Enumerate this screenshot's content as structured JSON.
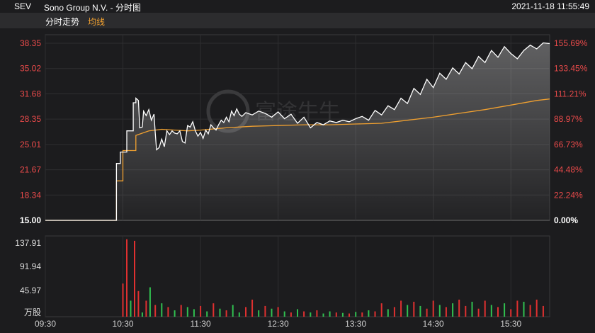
{
  "header": {
    "ticker": "SEV",
    "company": "Sono Group N.V. - 分时图",
    "timestamp": "2021-11-18 11:55:49"
  },
  "tabs": {
    "intraday": "分时走势",
    "average": "均线"
  },
  "watermark": "富途牛牛",
  "colors": {
    "price": "#ffffff",
    "average": "#f0a030",
    "up": "#e03030",
    "down": "#30c050",
    "axis_text_up": "#e84a4a",
    "axis_text_flat": "#ffffff",
    "volume_label": "#d8d8d8"
  },
  "chart_data": {
    "type": "line",
    "price_axis": {
      "ticks": [
        "38.35",
        "35.02",
        "31.68",
        "28.35",
        "25.01",
        "21.67",
        "18.34",
        "15.00"
      ],
      "ylim": [
        15.0,
        38.35
      ]
    },
    "percent_axis": {
      "ticks": [
        "155.69%",
        "133.45%",
        "111.21%",
        "88.97%",
        "66.73%",
        "44.48%",
        "22.24%",
        "0.00%"
      ]
    },
    "x_ticks": [
      "09:30",
      "10:30",
      "11:30",
      "12:30",
      "13:30",
      "14:30",
      "15:30"
    ],
    "price_series": {
      "x_minutes": [
        0,
        55,
        55,
        58,
        58,
        63,
        63,
        68,
        68,
        70,
        70,
        72,
        73,
        75,
        76,
        78,
        80,
        82,
        84,
        85,
        86,
        88,
        90,
        92,
        94,
        96,
        98,
        100,
        102,
        104,
        106,
        108,
        110,
        112,
        114,
        116,
        118,
        120,
        122,
        124,
        126,
        128,
        130,
        132,
        134,
        136,
        138,
        140,
        142,
        144,
        146,
        148,
        150,
        152,
        155,
        160,
        165,
        170,
        175,
        180,
        185,
        190,
        195,
        200,
        205,
        210,
        215,
        220,
        225,
        230,
        235,
        240,
        245,
        250,
        255,
        260,
        265,
        270,
        275,
        280,
        285,
        290,
        295,
        300,
        305,
        310,
        315,
        320,
        325,
        330,
        335,
        340,
        345,
        350,
        355,
        360,
        365,
        370,
        375,
        380,
        385,
        390
      ],
      "values": [
        15.0,
        15.0,
        22.5,
        22.5,
        24.0,
        24.0,
        26.8,
        26.8,
        30.5,
        30.5,
        31.1,
        30.8,
        27.2,
        27.3,
        29.4,
        28.8,
        29.6,
        28.2,
        29.0,
        26.5,
        24.3,
        24.6,
        25.7,
        24.7,
        26.8,
        26.3,
        26.8,
        26.5,
        26.4,
        26.8,
        25.4,
        25.2,
        27.5,
        27.3,
        28.0,
        26.8,
        26.1,
        26.6,
        25.8,
        26.9,
        26.4,
        27.6,
        27.2,
        26.9,
        27.6,
        28.2,
        27.9,
        28.6,
        28.0,
        29.4,
        28.8,
        29.7,
        29.0,
        28.7,
        29.2,
        28.9,
        29.4,
        29.1,
        28.6,
        29.3,
        28.4,
        29.0,
        27.8,
        28.6,
        27.2,
        27.9,
        27.6,
        28.1,
        27.9,
        28.2,
        28.0,
        28.4,
        28.7,
        28.2,
        29.5,
        28.9,
        30.1,
        29.6,
        31.1,
        30.4,
        32.4,
        31.6,
        33.6,
        32.5,
        34.4,
        33.6,
        35.1,
        34.3,
        35.8,
        35.0,
        36.6,
        35.8,
        37.4,
        36.5,
        37.9,
        37.0,
        36.3,
        37.4,
        38.1,
        37.6,
        38.4,
        38.3
      ]
    },
    "average_series": {
      "x_minutes": [
        0,
        55,
        55,
        60,
        60,
        70,
        70,
        80,
        90,
        100,
        110,
        120,
        140,
        160,
        180,
        200,
        220,
        240,
        260,
        280,
        300,
        320,
        340,
        360,
        380,
        390
      ],
      "values": [
        15.0,
        15.0,
        20.2,
        20.2,
        24.2,
        24.2,
        26.2,
        26.8,
        27.0,
        26.9,
        26.8,
        26.9,
        27.2,
        27.4,
        27.5,
        27.6,
        27.6,
        27.7,
        27.8,
        28.2,
        28.6,
        29.1,
        29.6,
        30.2,
        30.8,
        31.0
      ]
    },
    "volume_axis": {
      "ticks": [
        "137.91",
        "91.94",
        "45.97",
        "万股"
      ],
      "ylim": [
        0,
        137.91
      ]
    },
    "volume_bars": {
      "x_minutes": [
        60,
        63,
        66,
        69,
        72,
        75,
        78,
        81,
        85,
        90,
        95,
        100,
        105,
        110,
        115,
        120,
        125,
        130,
        135,
        140,
        145,
        150,
        155,
        160,
        165,
        170,
        175,
        180,
        185,
        190,
        195,
        200,
        205,
        210,
        215,
        220,
        225,
        230,
        235,
        240,
        245,
        250,
        255,
        260,
        265,
        270,
        275,
        280,
        285,
        290,
        295,
        300,
        305,
        310,
        315,
        320,
        325,
        330,
        335,
        340,
        345,
        350,
        355,
        360,
        365,
        370,
        375,
        380,
        385
      ],
      "values": [
        62,
        145,
        30,
        142,
        48,
        8,
        30,
        55,
        22,
        25,
        18,
        12,
        22,
        18,
        14,
        20,
        10,
        25,
        15,
        12,
        22,
        8,
        18,
        32,
        12,
        20,
        15,
        18,
        10,
        8,
        14,
        10,
        8,
        12,
        6,
        10,
        8,
        7,
        6,
        9,
        8,
        12,
        10,
        25,
        14,
        18,
        30,
        22,
        28,
        20,
        15,
        30,
        22,
        18,
        25,
        32,
        20,
        28,
        15,
        30,
        22,
        18,
        25,
        14,
        30,
        28,
        22,
        32,
        20
      ],
      "up": [
        true,
        true,
        false,
        true,
        true,
        false,
        true,
        false,
        true,
        false,
        true,
        false,
        true,
        false,
        false,
        true,
        false,
        true,
        false,
        true,
        false,
        false,
        true,
        true,
        false,
        true,
        false,
        true,
        false,
        true,
        false,
        true,
        false,
        true,
        false,
        false,
        true,
        false,
        true,
        false,
        true,
        false,
        true,
        true,
        false,
        true,
        true,
        false,
        true,
        false,
        true,
        true,
        false,
        true,
        false,
        true,
        true,
        false,
        true,
        true,
        false,
        true,
        false,
        true,
        true,
        false,
        true,
        true,
        true
      ]
    }
  }
}
